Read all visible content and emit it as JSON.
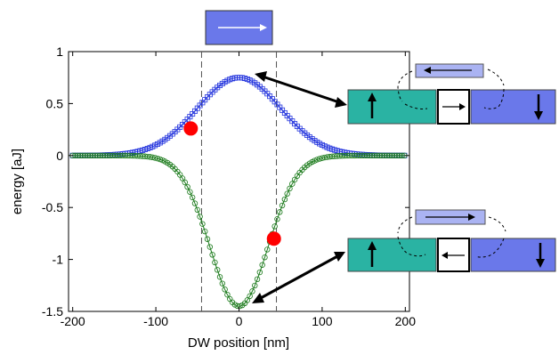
{
  "chart_data": {
    "type": "scatter",
    "xlabel": "DW position [nm]",
    "ylabel": "energy [aJ]",
    "xlim": [
      -205,
      205
    ],
    "ylim": [
      -1.5,
      1.0
    ],
    "x_ticks": [
      -200,
      -100,
      0,
      100,
      200
    ],
    "y_ticks": [
      1,
      0.5,
      0,
      -0.5,
      -1,
      -1.5
    ],
    "x_tick_labels": [
      "-200",
      "-100",
      "0",
      "100",
      "200"
    ],
    "y_tick_labels": [
      "1",
      "0.5",
      "0",
      "-0.5",
      "-1",
      "-1.5"
    ],
    "grid": false,
    "series": [
      {
        "color": "#2233dd",
        "marker": "square",
        "peak_x": 0,
        "peak_y": 0.75,
        "width_nm": 50,
        "x_start": -200,
        "x_end": 200
      },
      {
        "color": "#1a7a1a",
        "marker": "circle",
        "peak_x": 0,
        "peak_y": -1.45,
        "width_nm": 35,
        "x_start": -200,
        "x_end": 200
      }
    ],
    "guide_lines_x": [
      -45,
      45
    ],
    "highlight_points": [
      {
        "x": -58,
        "y": 0.26,
        "color": "#ff0000"
      },
      {
        "x": 42,
        "y": -0.8,
        "color": "#ff0000"
      }
    ]
  },
  "annotations": {
    "top_box_color": "#6a78ea",
    "teal_color": "#2ab3a3",
    "blue_color": "#6a78ea",
    "light_blue_color": "#aab3f2"
  }
}
